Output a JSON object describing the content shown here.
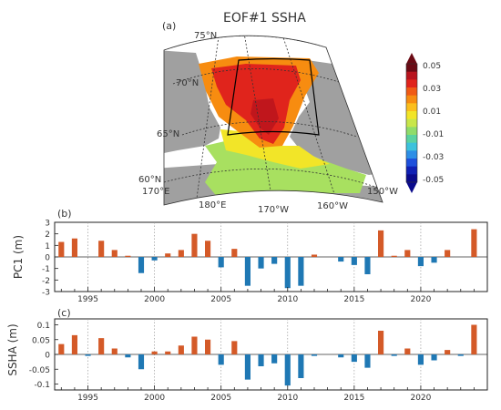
{
  "map_panel": {
    "panel_label": "(a)",
    "title": "EOF#1  SSHA",
    "lat_labels": [
      "75°N",
      "70°N",
      "65°N",
      "60°N"
    ],
    "lon_labels": [
      "170°E",
      "180°E",
      "170°W",
      "160°W",
      "150°W"
    ],
    "colorbar": {
      "ticks": [
        "0.05",
        "0.03",
        "0.01",
        "-0.01",
        "-0.03",
        "-0.05"
      ],
      "colors": [
        "#6b0a14",
        "#b8141e",
        "#e0241c",
        "#f05a14",
        "#f78c10",
        "#fbbe1c",
        "#f2e528",
        "#c8e64a",
        "#8fdc6a",
        "#5ad2a0",
        "#3cc2dc",
        "#2d8ee6",
        "#1e50dc",
        "#1020b4",
        "#0a0a8c"
      ]
    },
    "colors": {
      "land": "#a0a0a0",
      "strong": "#e0241c",
      "medium": "#f78c10",
      "weak": "#f2e528",
      "low": "#a8e060"
    }
  },
  "chart_data": [
    {
      "type": "bar",
      "panel_label": "(b)",
      "ylabel": "PC1  (m)",
      "ylim": [
        -3,
        3
      ],
      "yticks": [
        3,
        2,
        1,
        0,
        -1,
        -2,
        -3
      ],
      "xlim": [
        1993,
        2024.5
      ],
      "xticks": [
        1995,
        2000,
        2005,
        2010,
        2015,
        2020
      ],
      "colors": {
        "positive": "#d45a28",
        "negative": "#1f78b4"
      },
      "x": [
        1993,
        1994,
        1995,
        1996,
        1997,
        1998,
        1999,
        2000,
        2001,
        2002,
        2003,
        2004,
        2005,
        2006,
        2007,
        2008,
        2009,
        2010,
        2011,
        2012,
        2013,
        2014,
        2015,
        2016,
        2017,
        2018,
        2019,
        2020,
        2021,
        2022,
        2023,
        2024
      ],
      "values": [
        1.3,
        1.6,
        0,
        1.4,
        0.6,
        0.1,
        -1.4,
        -0.3,
        0.3,
        0.6,
        2.0,
        1.4,
        -0.9,
        0.7,
        -2.5,
        -1.0,
        -0.6,
        -2.7,
        -2.5,
        0.2,
        0,
        -0.4,
        -0.7,
        -1.5,
        2.3,
        0.1,
        0.6,
        -0.8,
        -0.5,
        0.6,
        0,
        2.4
      ]
    },
    {
      "type": "bar",
      "panel_label": "(c)",
      "ylabel": "SSHA  (m)",
      "ylim": [
        -0.12,
        0.12
      ],
      "yticks": [
        "0.1",
        "0.05",
        "0",
        "-0.05",
        "-0.1"
      ],
      "ytick_values": [
        0.1,
        0.05,
        0,
        -0.05,
        -0.1
      ],
      "xlim": [
        1993,
        2024.5
      ],
      "xticks": [
        1995,
        2000,
        2005,
        2010,
        2015,
        2020
      ],
      "colors": {
        "positive": "#d45a28",
        "negative": "#1f78b4"
      },
      "x": [
        1993,
        1994,
        1995,
        1996,
        1997,
        1998,
        1999,
        2000,
        2001,
        2002,
        2003,
        2004,
        2005,
        2006,
        2007,
        2008,
        2009,
        2010,
        2011,
        2012,
        2013,
        2014,
        2015,
        2016,
        2017,
        2018,
        2019,
        2020,
        2021,
        2022,
        2023,
        2024
      ],
      "values": [
        0.035,
        0.065,
        -0.005,
        0.055,
        0.02,
        -0.01,
        -0.05,
        0.01,
        0.01,
        0.03,
        0.06,
        0.05,
        -0.035,
        0.045,
        -0.085,
        -0.04,
        -0.03,
        -0.105,
        -0.08,
        -0.005,
        0,
        -0.01,
        -0.025,
        -0.045,
        0.08,
        -0.005,
        0.02,
        -0.035,
        -0.02,
        0.015,
        -0.005,
        0.1
      ]
    }
  ]
}
